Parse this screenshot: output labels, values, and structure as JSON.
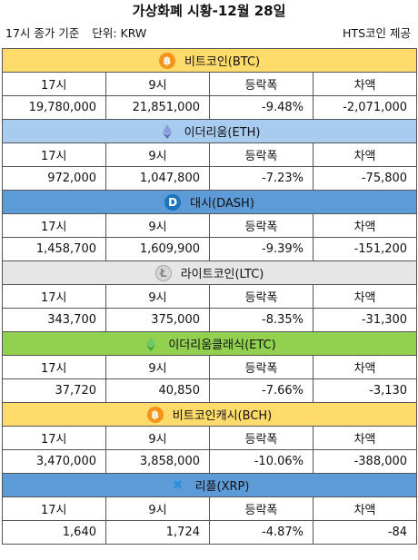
{
  "title": "가상화폐 시황-12월 28일",
  "subtitle_left": "17시 종가 기준",
  "unit": "단위: KRW",
  "source": "HTS코인 제공",
  "coins": [
    {
      "name": "비트코인(BTC)",
      "icon": "bitcoin-icon",
      "header_color": "#fedb6b",
      "labels": [
        "17시",
        "9시",
        "등락폭",
        "차액"
      ],
      "values": [
        "19,780,000",
        "21,851,000",
        "-9.48%",
        "-2,071,000"
      ]
    },
    {
      "name": "이더리움(ETH)",
      "icon": "ethereum-icon",
      "header_color": "#a8cbf0",
      "labels": [
        "17시",
        "9시",
        "등락폭",
        "차액"
      ],
      "values": [
        "972,000",
        "1,047,800",
        "-7.23%",
        "-75,800"
      ]
    },
    {
      "name": "대시(DASH)",
      "icon": "dash-icon",
      "header_color": "#5c9bd8",
      "labels": [
        "17시",
        "9시",
        "등락폭",
        "차액"
      ],
      "values": [
        "1,458,700",
        "1,609,900",
        "-9.39%",
        "-151,200"
      ]
    },
    {
      "name": "라이트코인(LTC)",
      "icon": "litecoin-icon",
      "header_color": "#e6e6e6",
      "labels": [
        "17시",
        "9시",
        "등락폭",
        "차액"
      ],
      "values": [
        "343,700",
        "375,000",
        "-8.35%",
        "-31,300"
      ]
    },
    {
      "name": "이더리움클래식(ETC)",
      "icon": "ethereum-classic-icon",
      "header_color": "#92d050",
      "labels": [
        "17시",
        "9시",
        "등락폭",
        "차액"
      ],
      "values": [
        "37,720",
        "40,850",
        "-7.66%",
        "-3,130"
      ]
    },
    {
      "name": "비트코인캐시(BCH)",
      "icon": "bitcoin-cash-icon",
      "header_color": "#fedb6b",
      "labels": [
        "17시",
        "9시",
        "등락폭",
        "차액"
      ],
      "values": [
        "3,470,000",
        "3,858,000",
        "-10.06%",
        "-388,000"
      ]
    },
    {
      "name": "리플(XRP)",
      "icon": "ripple-icon",
      "header_color": "#5c9bd8",
      "labels": [
        "17시",
        "9시",
        "등락폭",
        "차액"
      ],
      "values": [
        "1,640",
        "1,724",
        "-4.87%",
        "-84"
      ]
    }
  ]
}
